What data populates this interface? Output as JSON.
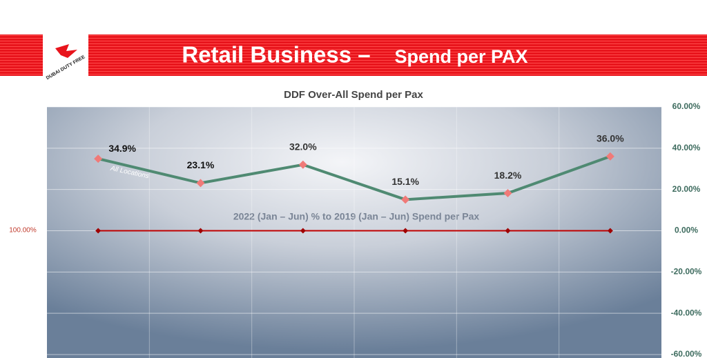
{
  "header": {
    "title_main": "Retail Business –",
    "title_sub": "Spend per PAX",
    "logo_text": "DUBAI DUTY FREE"
  },
  "chart_data": {
    "type": "line",
    "title": "DDF Over-All Spend per Pax",
    "annotation": "2022 (Jan – Jun) % to 2019 (Jan – Jun) Spend per Pax",
    "baseline_label": "100.00%",
    "categories": [
      null,
      null,
      null,
      null,
      null,
      null
    ],
    "series": [
      {
        "name": "All Locations",
        "color": "#4f8a72",
        "marker_color": "#f07a78",
        "values": [
          34.9,
          23.1,
          32.0,
          15.1,
          18.2,
          36.0
        ],
        "value_labels": [
          "34.9%",
          "23.1%",
          "32.0%",
          "15.1%",
          "18.2%",
          "36.0%"
        ]
      },
      {
        "color": "#c00000",
        "marker_color": "#a00000",
        "values": [
          0,
          0,
          0,
          0,
          0,
          0
        ]
      }
    ],
    "y2lim": [
      -60,
      60
    ],
    "y2ticks": [
      {
        "value": 60,
        "label": "60.00%"
      },
      {
        "value": 40,
        "label": "40.00%"
      },
      {
        "value": 20,
        "label": "20.00%"
      },
      {
        "value": 0,
        "label": "0.00%"
      },
      {
        "value": -20,
        "label": "-20.00%"
      },
      {
        "value": -40,
        "label": "-40.00%"
      },
      {
        "value": -60,
        "label": "-60.00%"
      }
    ],
    "grid": true
  }
}
